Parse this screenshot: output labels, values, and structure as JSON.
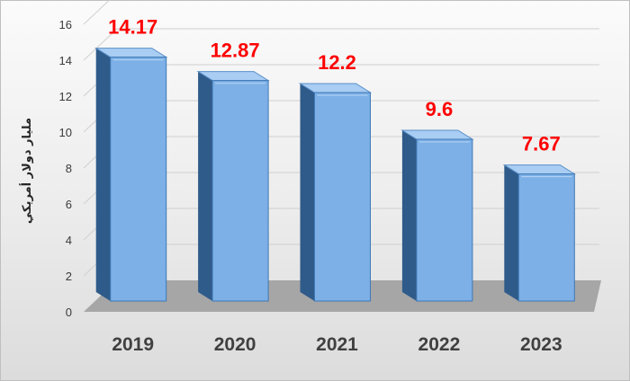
{
  "chart_data": {
    "type": "bar",
    "categories": [
      "2019",
      "2020",
      "2021",
      "2022",
      "2023"
    ],
    "values": [
      14.17,
      12.87,
      12.2,
      9.6,
      7.67
    ],
    "data_labels": [
      "14.17",
      "12.87",
      "12.2",
      "9.6",
      "7.67"
    ],
    "ylabel": "مليار دولار أمريكي",
    "ylim": [
      0,
      16
    ],
    "yticks": [
      0,
      2,
      4,
      6,
      8,
      10,
      12,
      14,
      16
    ],
    "grid": true,
    "legend": "none",
    "colors": {
      "bar_front": "#7cb0e6",
      "bar_side": "#2f5b8a",
      "bar_top": "#a9cdf3",
      "data_label": "#ff0000",
      "floor": "#a6a6a6"
    }
  }
}
